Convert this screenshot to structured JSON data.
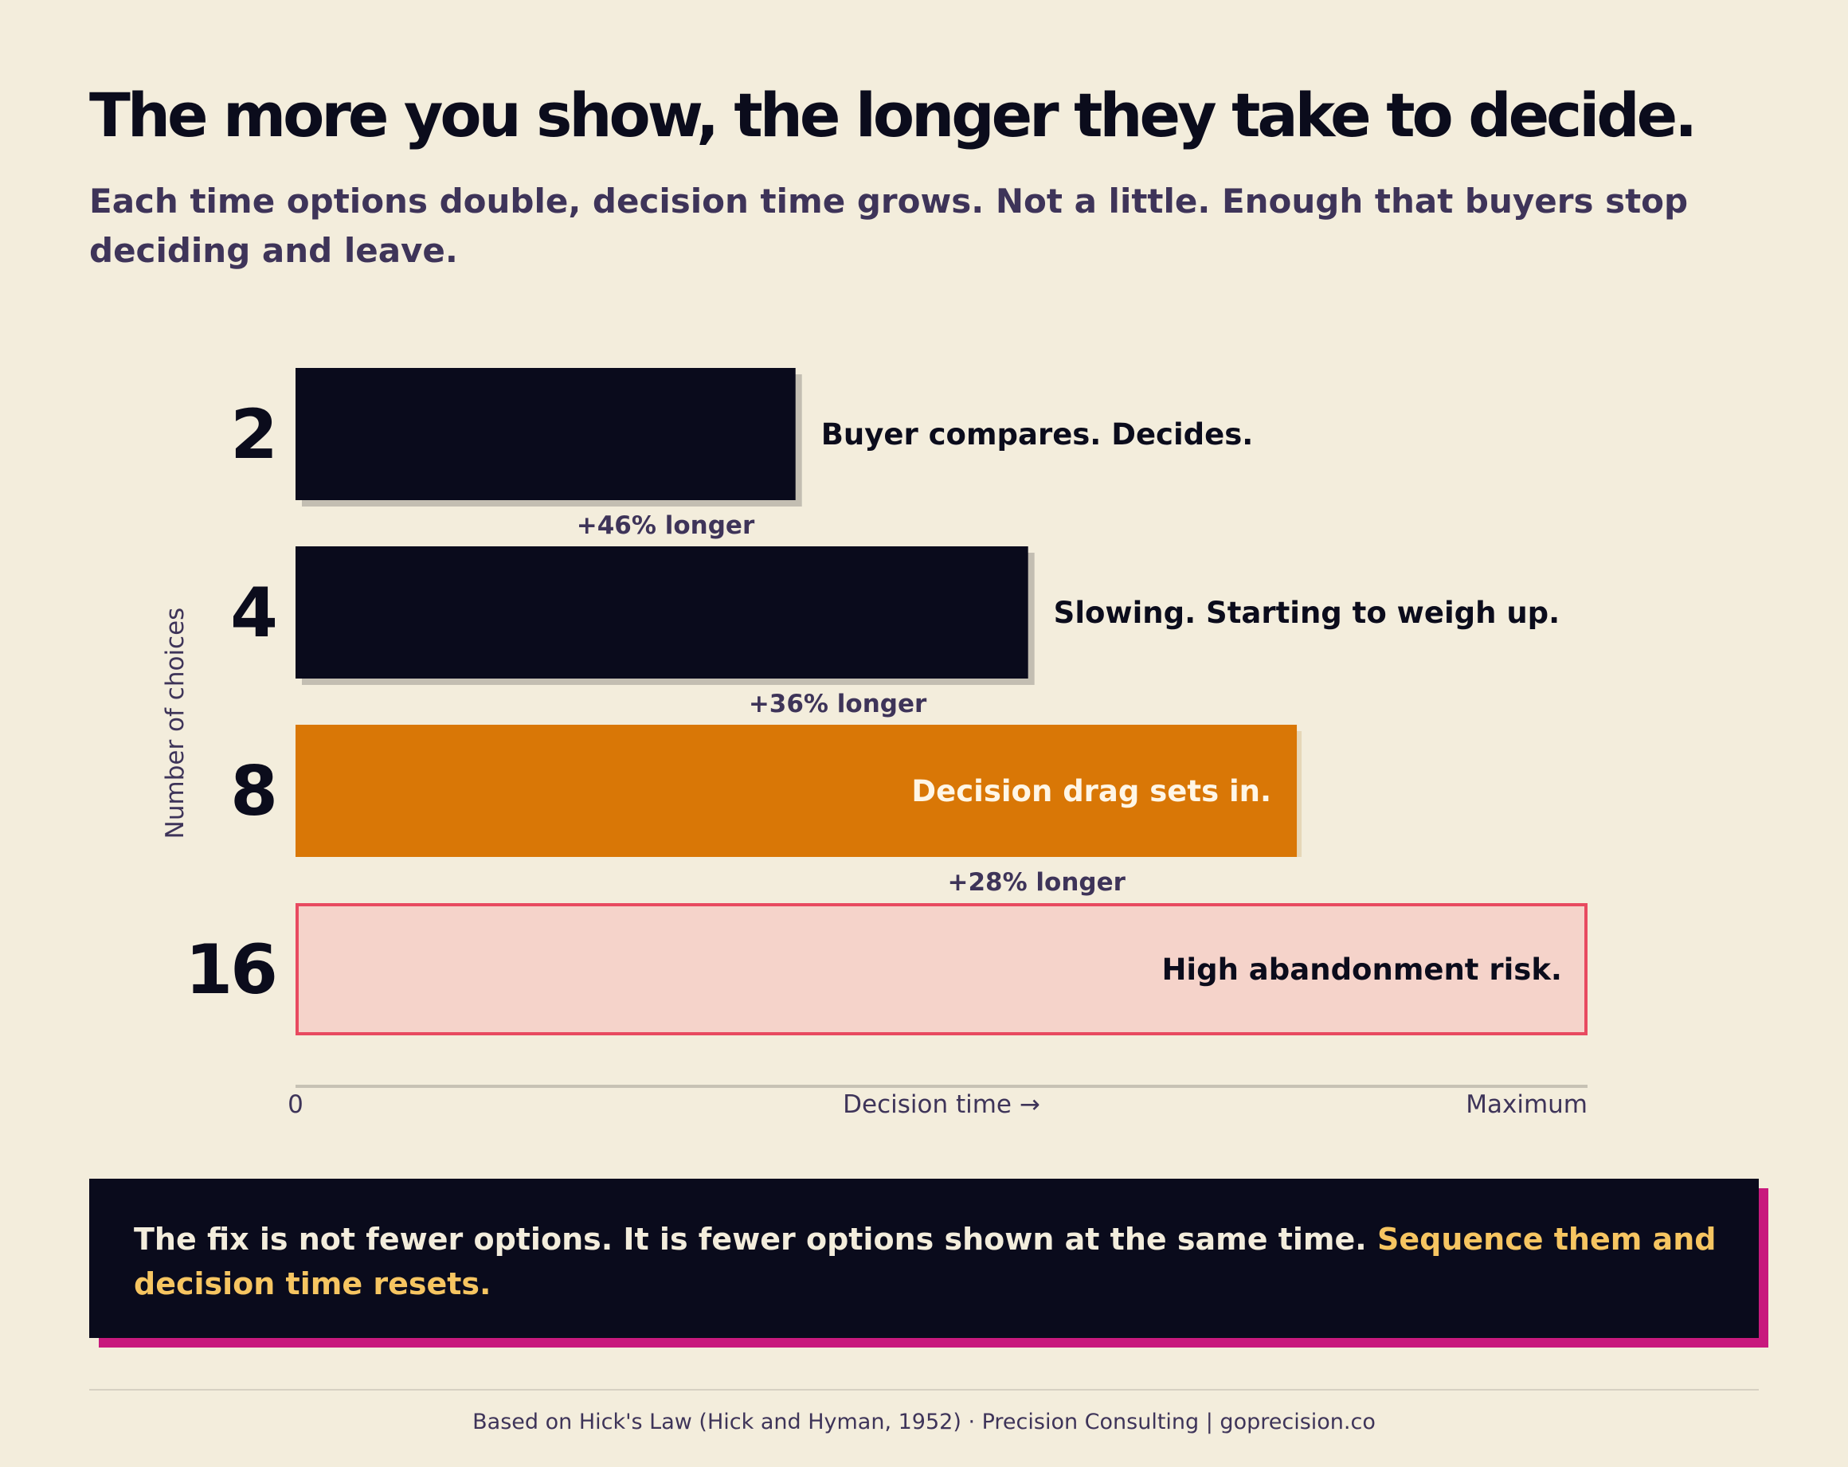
{
  "header": {
    "title": "The more you show, the longer they take to decide.",
    "subtitle": "Each time options double, decision time grows. Not a little. Enough that buyers stop deciding and leave."
  },
  "chart_data": {
    "type": "bar",
    "orientation": "horizontal",
    "ylabel": "Number of choices",
    "xlabel": "Decision time →",
    "x_tick_min": "0",
    "x_tick_max": "Maximum",
    "xlim": [
      0,
      1
    ],
    "grid": false,
    "categories": [
      "2",
      "4",
      "8",
      "16"
    ],
    "values": [
      0.387,
      0.567,
      0.775,
      1.0
    ],
    "labels": [
      "Buyer compares. Decides.",
      "Slowing. Starting to weigh up.",
      "Decision drag sets in.",
      "High abandonment risk."
    ],
    "growth_labels": [
      "+46% longer",
      "+36% longer",
      "+28% longer"
    ],
    "colors": [
      "#0A0B1C",
      "#0A0B1C",
      "#D97706",
      "#F5D3CA"
    ],
    "highlight_border": "#E84A60"
  },
  "callout": {
    "text": "The fix is not fewer options. It is fewer options shown at the same time.",
    "highlight": "Sequence them and decision time resets."
  },
  "footer": {
    "text": "Based on Hick's Law (Hick and Hyman, 1952)  ·  Precision Consulting | goprecision.co"
  }
}
